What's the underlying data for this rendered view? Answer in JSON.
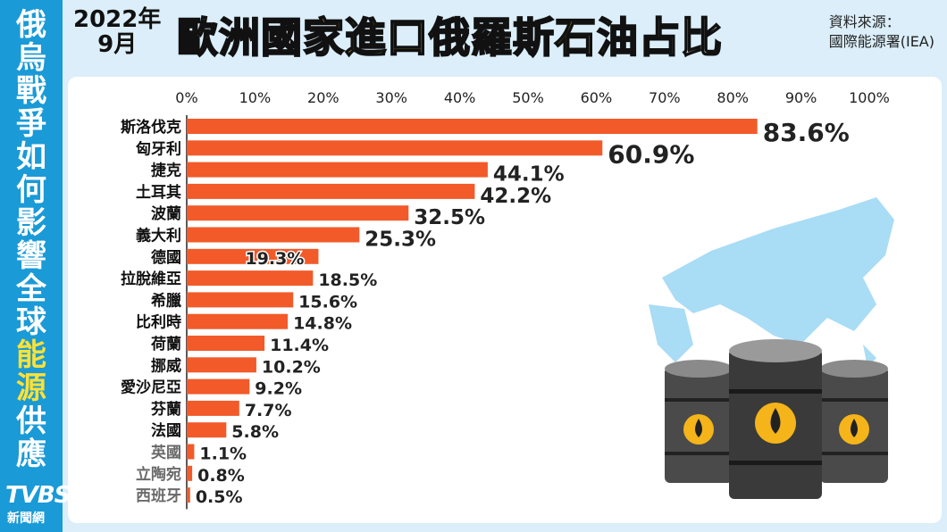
{
  "sidebar": {
    "text_normal_1": "俄烏戰爭如何影響全球",
    "text_highlight": "能源",
    "text_normal_2": "供應"
  },
  "logo": {
    "main": "TVBS",
    "sub": "新聞網"
  },
  "header": {
    "date_year": "2022年",
    "date_month": "9月",
    "title_main": "歐洲國家進口俄羅斯石油",
    "title_tail": "占比",
    "source_line1": "資料來源：",
    "source_line2": "國際能源署(IEA)"
  },
  "colors": {
    "bar": "#f25a2a",
    "accent_yellow": "#ffe135",
    "sidebar_blue": "#1a9ad6",
    "map_blue": "#a9dcf5"
  },
  "chart_data": {
    "type": "bar",
    "orientation": "horizontal",
    "title": "歐洲國家進口俄羅斯石油占比",
    "xlabel": "",
    "ylabel": "",
    "xlim": [
      0,
      100
    ],
    "x_ticks": [
      "0%",
      "10%",
      "20%",
      "30%",
      "40%",
      "50%",
      "60%",
      "70%",
      "80%",
      "90%",
      "100%"
    ],
    "categories": [
      "斯洛伐克",
      "匈牙利",
      "捷克",
      "土耳其",
      "波蘭",
      "義大利",
      "德國",
      "拉脫維亞",
      "希臘",
      "比利時",
      "荷蘭",
      "挪威",
      "愛沙尼亞",
      "芬蘭",
      "法國",
      "英國",
      "立陶宛",
      "西班牙"
    ],
    "values": [
      83.6,
      60.9,
      44.1,
      42.2,
      32.5,
      25.3,
      19.3,
      18.5,
      15.6,
      14.8,
      11.4,
      10.2,
      9.2,
      7.7,
      5.8,
      1.1,
      0.8,
      0.5
    ],
    "labels": [
      "83.6%",
      "60.9%",
      "44.1%",
      "42.2%",
      "32.5%",
      "25.3%",
      "19.3%",
      "18.5%",
      "15.6%",
      "14.8%",
      "11.4%",
      "10.2%",
      "9.2%",
      "7.7%",
      "5.8%",
      "1.1%",
      "0.8%",
      "0.5%"
    ],
    "grid": false,
    "legend": "none"
  }
}
